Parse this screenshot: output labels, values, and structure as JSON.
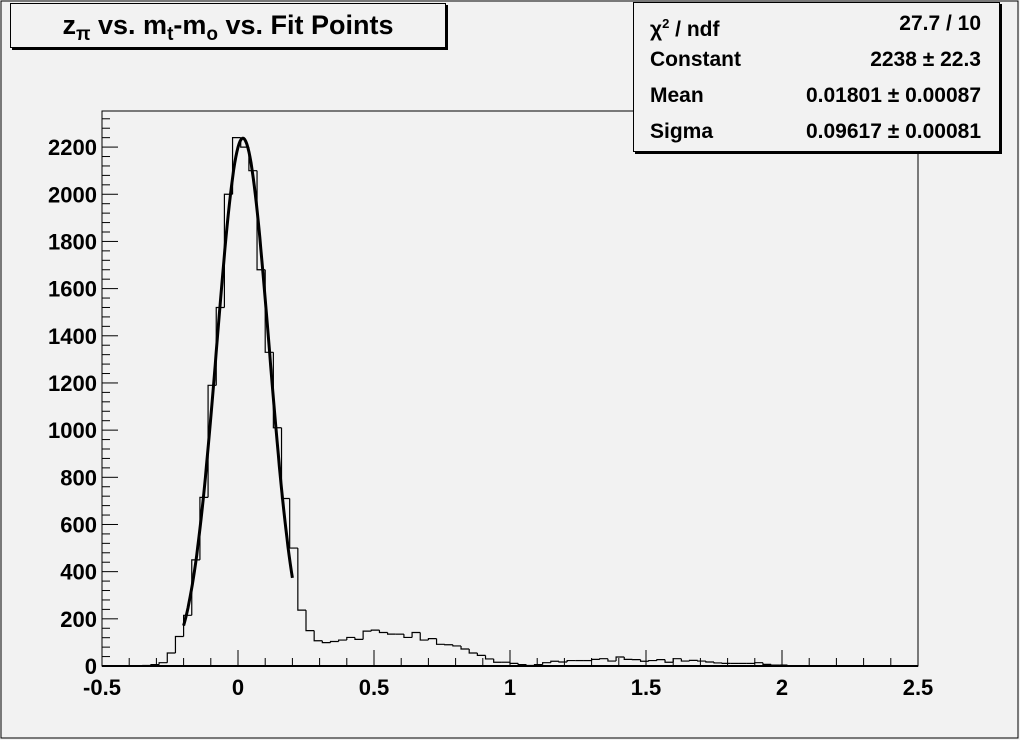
{
  "title": {
    "main": "z",
    "sub_pi": "π",
    "vs1": " vs. m",
    "sub_t": "t",
    "dash": "-m",
    "sub_o": "o",
    "vs2": " vs. Fit Points"
  },
  "stats": {
    "rows": [
      {
        "label": "χ",
        "label_sup": "2",
        "label_rest": " / ndf",
        "value": "27.7 / 10"
      },
      {
        "label": "Constant",
        "value": "2238 ± 22.3"
      },
      {
        "label": "Mean",
        "value": "0.01801 ± 0.00087"
      },
      {
        "label": "Sigma",
        "value": "0.09617 ± 0.00081"
      }
    ]
  },
  "chart_data": {
    "type": "bar",
    "style": "step-histogram",
    "title": "zπ vs. mt-mo vs. Fit Points",
    "xlabel": "",
    "ylabel": "",
    "xlim": [
      -0.5,
      2.5
    ],
    "ylim": [
      0,
      2353
    ],
    "bin_width": 0.03,
    "x_ticks": [
      "-0.5",
      "0",
      "0.5",
      "1",
      "1.5",
      "2",
      "2.5"
    ],
    "y_ticks": [
      "0",
      "200",
      "400",
      "600",
      "800",
      "1000",
      "1200",
      "1400",
      "1600",
      "1800",
      "2000",
      "2200"
    ],
    "values": [
      0,
      0,
      0,
      0,
      0,
      2,
      6,
      14,
      55,
      125,
      215,
      450,
      715,
      1190,
      1520,
      2000,
      2240,
      2200,
      2100,
      1680,
      1330,
      1010,
      710,
      500,
      237,
      150,
      107,
      99,
      104,
      110,
      121,
      113,
      148,
      152,
      142,
      135,
      135,
      121,
      142,
      110,
      116,
      92,
      90,
      85,
      72,
      55,
      45,
      30,
      16,
      16,
      11,
      6,
      2,
      6,
      14,
      20,
      17,
      23,
      23,
      23,
      28,
      31,
      21,
      38,
      28,
      27,
      20,
      23,
      27,
      16,
      31,
      21,
      24,
      21,
      17,
      13,
      11,
      11,
      11,
      11,
      14,
      7,
      4,
      4,
      0,
      0,
      0,
      0,
      0,
      0,
      0,
      0,
      0,
      0,
      0,
      0,
      0,
      0,
      0,
      0
    ],
    "fit": {
      "function": "gaus",
      "constant": 2238,
      "mean": 0.01801,
      "sigma": 0.09617,
      "range": [
        -0.2,
        0.2
      ]
    },
    "grid": false,
    "legend": "top-right stats box",
    "colors": {
      "background": "#f2f2f2",
      "line": "#000000"
    }
  }
}
